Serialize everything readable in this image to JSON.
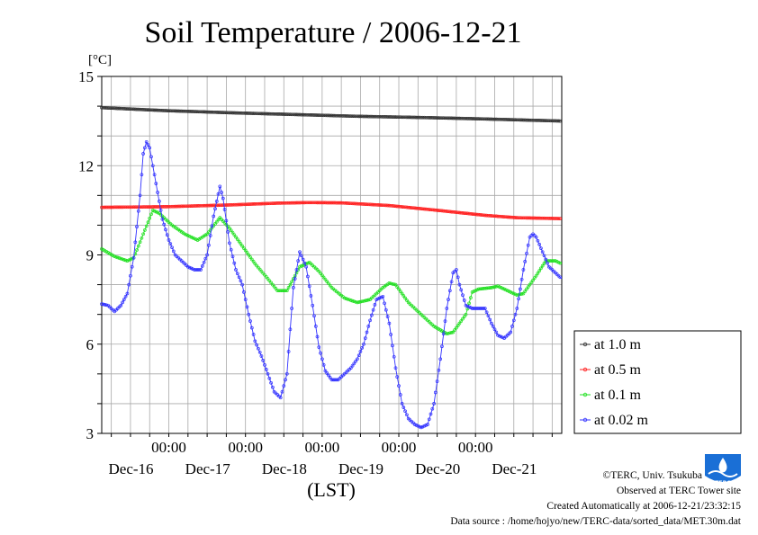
{
  "chart_data": {
    "type": "line",
    "title": "Soil Temperature / 2006-12-21",
    "ylabel": "[°C]",
    "xlabel": "(LST)",
    "ylim": [
      3,
      15
    ],
    "yticks": [
      3,
      6,
      9,
      12,
      15
    ],
    "xlim": [
      0,
      144
    ],
    "xticks": [
      {
        "x": 21,
        "label": "00:00",
        "date": "Dec-16"
      },
      {
        "x": 45,
        "label": "00:00",
        "date": "Dec-17"
      },
      {
        "x": 69,
        "label": "00:00",
        "date": "Dec-18"
      },
      {
        "x": 93,
        "label": "00:00",
        "date": "Dec-19"
      },
      {
        "x": 117,
        "label": "00:00",
        "date": "Dec-20"
      },
      {
        "x": 141,
        "label": "",
        "date": "Dec-21"
      }
    ],
    "grid": true,
    "legend_position": "right",
    "series": [
      {
        "name": "at 1.0 m",
        "color": "#333333",
        "points": [
          [
            0,
            13.95
          ],
          [
            20,
            13.85
          ],
          [
            40,
            13.78
          ],
          [
            60,
            13.72
          ],
          [
            80,
            13.66
          ],
          [
            100,
            13.62
          ],
          [
            120,
            13.57
          ],
          [
            144,
            13.5
          ]
        ]
      },
      {
        "name": "at 0.5 m",
        "color": "#ff2020",
        "points": [
          [
            0,
            10.6
          ],
          [
            20,
            10.62
          ],
          [
            40,
            10.68
          ],
          [
            55,
            10.74
          ],
          [
            65,
            10.76
          ],
          [
            75,
            10.75
          ],
          [
            90,
            10.66
          ],
          [
            105,
            10.5
          ],
          [
            120,
            10.33
          ],
          [
            130,
            10.25
          ],
          [
            144,
            10.22
          ]
        ]
      },
      {
        "name": "at 0.1 m",
        "color": "#20e020",
        "points": [
          [
            0,
            9.2
          ],
          [
            4,
            8.95
          ],
          [
            8,
            8.8
          ],
          [
            10,
            8.9
          ],
          [
            13,
            9.7
          ],
          [
            16,
            10.5
          ],
          [
            18,
            10.4
          ],
          [
            22,
            10.0
          ],
          [
            26,
            9.7
          ],
          [
            30,
            9.5
          ],
          [
            33,
            9.7
          ],
          [
            37,
            10.25
          ],
          [
            40,
            9.9
          ],
          [
            44,
            9.3
          ],
          [
            48,
            8.7
          ],
          [
            52,
            8.2
          ],
          [
            55,
            7.8
          ],
          [
            58,
            7.8
          ],
          [
            62,
            8.6
          ],
          [
            65,
            8.75
          ],
          [
            68,
            8.45
          ],
          [
            72,
            7.9
          ],
          [
            76,
            7.55
          ],
          [
            80,
            7.4
          ],
          [
            84,
            7.5
          ],
          [
            88,
            7.9
          ],
          [
            90,
            8.05
          ],
          [
            92,
            8.0
          ],
          [
            96,
            7.4
          ],
          [
            100,
            7.0
          ],
          [
            104,
            6.6
          ],
          [
            108,
            6.35
          ],
          [
            110,
            6.4
          ],
          [
            114,
            7.0
          ],
          [
            116,
            7.75
          ],
          [
            118,
            7.85
          ],
          [
            122,
            7.9
          ],
          [
            124,
            7.95
          ],
          [
            126,
            7.85
          ],
          [
            130,
            7.65
          ],
          [
            132,
            7.7
          ],
          [
            136,
            8.3
          ],
          [
            139,
            8.8
          ],
          [
            142,
            8.8
          ],
          [
            144,
            8.7
          ]
        ]
      },
      {
        "name": "at 0.02 m",
        "color": "#3030ff",
        "points": [
          [
            0,
            7.35
          ],
          [
            2,
            7.3
          ],
          [
            4,
            7.1
          ],
          [
            6,
            7.3
          ],
          [
            8,
            7.7
          ],
          [
            10,
            8.9
          ],
          [
            12,
            11.0
          ],
          [
            13,
            12.4
          ],
          [
            14,
            12.8
          ],
          [
            15,
            12.6
          ],
          [
            17,
            11.4
          ],
          [
            19,
            10.2
          ],
          [
            21,
            9.5
          ],
          [
            23,
            9.0
          ],
          [
            25,
            8.8
          ],
          [
            27,
            8.6
          ],
          [
            29,
            8.5
          ],
          [
            31,
            8.5
          ],
          [
            33,
            9.0
          ],
          [
            35,
            10.3
          ],
          [
            37,
            11.3
          ],
          [
            38,
            10.9
          ],
          [
            40,
            9.4
          ],
          [
            42,
            8.5
          ],
          [
            44,
            8.0
          ],
          [
            46,
            7.0
          ],
          [
            48,
            6.1
          ],
          [
            50,
            5.6
          ],
          [
            52,
            5.0
          ],
          [
            54,
            4.4
          ],
          [
            56,
            4.2
          ],
          [
            58,
            5.0
          ],
          [
            59,
            6.5
          ],
          [
            60,
            7.9
          ],
          [
            62,
            9.1
          ],
          [
            64,
            8.6
          ],
          [
            66,
            7.3
          ],
          [
            68,
            5.9
          ],
          [
            70,
            5.1
          ],
          [
            72,
            4.8
          ],
          [
            74,
            4.8
          ],
          [
            76,
            5.0
          ],
          [
            78,
            5.2
          ],
          [
            80,
            5.5
          ],
          [
            82,
            6.0
          ],
          [
            84,
            6.8
          ],
          [
            86,
            7.5
          ],
          [
            88,
            7.6
          ],
          [
            90,
            6.7
          ],
          [
            92,
            5.2
          ],
          [
            94,
            4.0
          ],
          [
            96,
            3.5
          ],
          [
            98,
            3.3
          ],
          [
            100,
            3.2
          ],
          [
            102,
            3.3
          ],
          [
            104,
            4.0
          ],
          [
            106,
            5.5
          ],
          [
            108,
            7.2
          ],
          [
            110,
            8.4
          ],
          [
            111,
            8.5
          ],
          [
            112,
            8.0
          ],
          [
            114,
            7.3
          ],
          [
            116,
            7.2
          ],
          [
            118,
            7.2
          ],
          [
            120,
            7.2
          ],
          [
            122,
            6.7
          ],
          [
            124,
            6.3
          ],
          [
            126,
            6.2
          ],
          [
            128,
            6.4
          ],
          [
            130,
            7.2
          ],
          [
            132,
            8.5
          ],
          [
            134,
            9.6
          ],
          [
            135,
            9.7
          ],
          [
            136,
            9.6
          ],
          [
            138,
            9.1
          ],
          [
            140,
            8.6
          ],
          [
            142,
            8.4
          ],
          [
            144,
            8.2
          ]
        ]
      }
    ]
  },
  "credits": {
    "copyright": "©TERC, Univ. Tsukuba",
    "observed": "Observed at TERC Tower site",
    "created": "Created Automatically at 2006-12-21/23:32:15",
    "source": "Data source : /home/hojyo/new/TERC-data/sorted_data/MET.30m.dat",
    "logo_text": "TERC"
  }
}
